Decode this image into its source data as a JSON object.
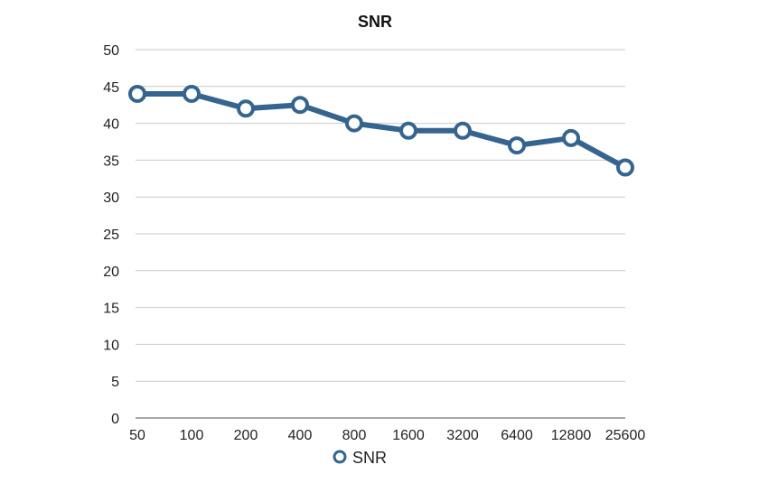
{
  "chart_data": {
    "type": "line",
    "title": "SNR",
    "categories": [
      "50",
      "100",
      "200",
      "400",
      "800",
      "1600",
      "3200",
      "6400",
      "12800",
      "25600"
    ],
    "series": [
      {
        "name": "SNR",
        "values": [
          44,
          44,
          42,
          42.5,
          40,
          39,
          39,
          37,
          38,
          34
        ],
        "color": "#35648f"
      }
    ],
    "ylim": [
      0,
      50
    ],
    "yticks": [
      0,
      5,
      10,
      15,
      20,
      25,
      30,
      35,
      40,
      45,
      50
    ],
    "grid": true,
    "legend": "bottom",
    "colors": {
      "grid": "#c9c9c9",
      "axis": "#8a8a8a",
      "text": "#222222",
      "marker_fill": "#ffffff"
    }
  }
}
